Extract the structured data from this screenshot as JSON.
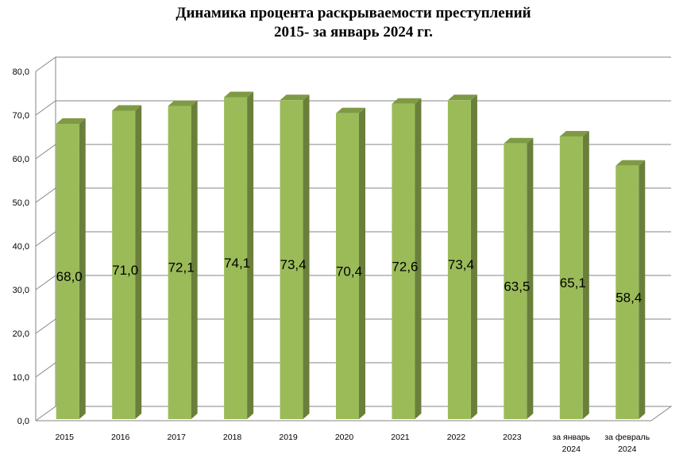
{
  "chart_data": {
    "type": "bar",
    "title_lines": [
      "Динамика процента раскрываемости преступлений",
      "2015- за январь 2024 гг."
    ],
    "categories": [
      [
        "2015"
      ],
      [
        "2016"
      ],
      [
        "2017"
      ],
      [
        "2018"
      ],
      [
        "2019"
      ],
      [
        "2020"
      ],
      [
        "2021"
      ],
      [
        "2022"
      ],
      [
        "2023"
      ],
      [
        "за январь",
        "2024"
      ],
      [
        "за февраль",
        "2024"
      ]
    ],
    "values": [
      68.0,
      71.0,
      72.1,
      74.1,
      73.4,
      70.4,
      72.6,
      73.4,
      63.5,
      65.1,
      58.4
    ],
    "value_labels": [
      "68,0",
      "71,0",
      "72,1",
      "74,1",
      "73,4",
      "70,4",
      "72,6",
      "73,4",
      "63,5",
      "65,1",
      "58,4"
    ],
    "ylim": [
      0,
      80
    ],
    "yticks": [
      "0,0",
      "10,0",
      "20,0",
      "30,0",
      "40,0",
      "50,0",
      "60,0",
      "70,0",
      "80,0"
    ],
    "grid": true,
    "style": "3d-column",
    "colors": {
      "front": "#9bbb59",
      "side": "#6a7f3a",
      "top": "#7f9a45"
    }
  }
}
